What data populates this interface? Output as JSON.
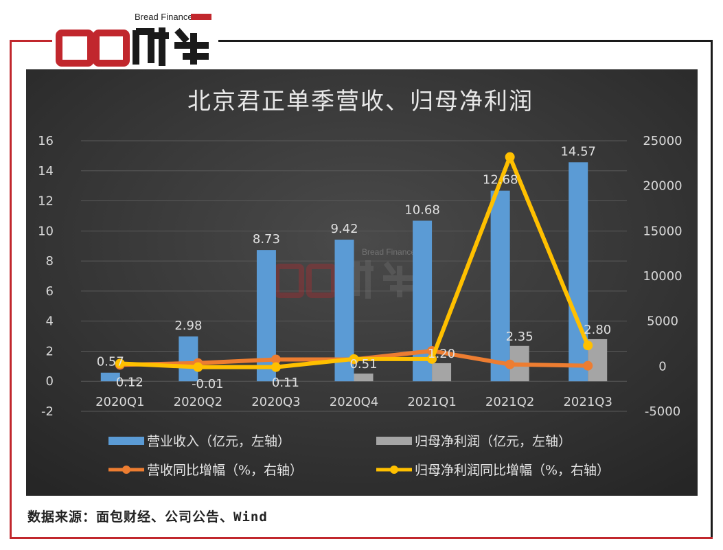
{
  "brand": {
    "name": "面包财经",
    "name_en": "Bread Finance",
    "colors": {
      "red": "#c1272d",
      "dark": "#1a1a1a"
    }
  },
  "source_note": "数据来源：面包财经、公司公告、Wind",
  "chart_data": {
    "type": "bar",
    "title": "北京君正单季营收、归母净利润",
    "categories": [
      "2020Q1",
      "2020Q2",
      "2020Q3",
      "2020Q4",
      "2021Q1",
      "2021Q2",
      "2021Q3"
    ],
    "left_axis": {
      "ylim": [
        -2,
        16
      ],
      "ticks": [
        "16",
        "14",
        "12",
        "10",
        "8",
        "6",
        "4",
        "2",
        "0",
        "-2"
      ]
    },
    "right_axis": {
      "ylim": [
        -5000,
        25000
      ],
      "ticks": [
        "25000",
        "20000",
        "15000",
        "10000",
        "5000",
        "0",
        "-5000"
      ]
    },
    "grid": true,
    "legend_position": "bottom",
    "series": [
      {
        "name": "营业收入（亿元，左轴）",
        "kind": "bar",
        "axis": "left",
        "color": "#5b9bd5",
        "values": [
          0.57,
          2.98,
          8.73,
          9.42,
          10.68,
          12.68,
          14.57
        ],
        "labels": [
          "0.57",
          "2.98",
          "8.73",
          "9.42",
          "10.68",
          "12.68",
          "14.57"
        ]
      },
      {
        "name": "归母净利润（亿元，左轴）",
        "kind": "bar",
        "axis": "left",
        "color": "#a5a5a5",
        "values": [
          0.12,
          -0.01,
          0.11,
          0.51,
          1.2,
          2.35,
          2.8
        ],
        "labels": [
          "0.12",
          "-0.01",
          "0.11",
          "0.51",
          "1.20",
          "2.35",
          "2.80"
        ]
      },
      {
        "name": "营收同比增幅（%，右轴）",
        "kind": "line",
        "axis": "right",
        "color": "#ed7d31",
        "values": [
          150,
          350,
          750,
          750,
          1700,
          200,
          50
        ]
      },
      {
        "name": "归母净利润同比增幅（%，右轴）",
        "kind": "line",
        "axis": "right",
        "color": "#ffc000",
        "values": [
          300,
          -100,
          -100,
          800,
          800,
          23200,
          2300
        ]
      }
    ]
  }
}
